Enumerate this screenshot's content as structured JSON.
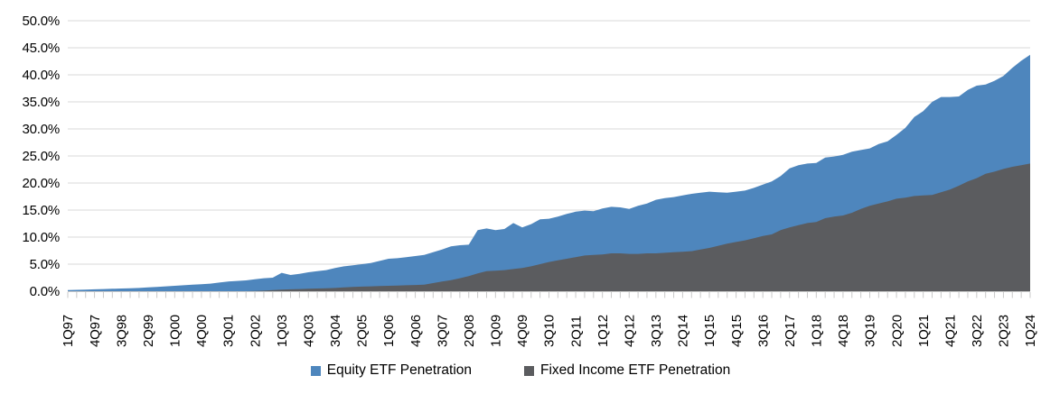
{
  "chart_data": {
    "type": "area",
    "title": "",
    "mode": "overlay",
    "grid": "horizontal",
    "legend_position": "bottom-center",
    "ylim": [
      0,
      50
    ],
    "ytick_step": 5,
    "ytick_suffix": "%",
    "xtick_label_every": 3,
    "colors": {
      "equity": "#4E86BD",
      "fixed_income": "#5B5C5F",
      "gridline": "#D9D9D9",
      "tick": "#C9C9C9",
      "text": "#000000",
      "background": "#FFFFFF"
    },
    "categories": [
      "1Q97",
      "2Q97",
      "3Q97",
      "4Q97",
      "1Q98",
      "2Q98",
      "3Q98",
      "4Q98",
      "1Q99",
      "2Q99",
      "3Q99",
      "4Q99",
      "1Q00",
      "2Q00",
      "3Q00",
      "4Q00",
      "1Q01",
      "2Q01",
      "3Q01",
      "4Q01",
      "1Q02",
      "2Q02",
      "3Q02",
      "4Q02",
      "1Q03",
      "2Q03",
      "3Q03",
      "4Q03",
      "1Q04",
      "2Q04",
      "3Q04",
      "4Q04",
      "1Q05",
      "2Q05",
      "3Q05",
      "4Q05",
      "1Q06",
      "2Q06",
      "3Q06",
      "4Q06",
      "1Q07",
      "2Q07",
      "3Q07",
      "4Q07",
      "1Q08",
      "2Q08",
      "3Q08",
      "4Q08",
      "1Q09",
      "2Q09",
      "3Q09",
      "4Q09",
      "1Q10",
      "2Q10",
      "3Q10",
      "4Q10",
      "1Q11",
      "2Q11",
      "3Q11",
      "4Q11",
      "1Q12",
      "2Q12",
      "3Q12",
      "4Q12",
      "1Q13",
      "2Q13",
      "3Q13",
      "4Q13",
      "1Q14",
      "2Q14",
      "3Q14",
      "4Q14",
      "1Q15",
      "2Q15",
      "3Q15",
      "4Q15",
      "1Q16",
      "2Q16",
      "3Q16",
      "4Q16",
      "1Q17",
      "2Q17",
      "3Q17",
      "4Q17",
      "1Q18",
      "2Q18",
      "3Q18",
      "4Q18",
      "1Q19",
      "2Q19",
      "3Q19",
      "4Q19",
      "1Q20",
      "2Q20",
      "3Q20",
      "4Q20",
      "1Q21",
      "2Q21",
      "3Q21",
      "4Q21",
      "1Q22",
      "2Q22",
      "3Q22",
      "4Q22",
      "1Q23",
      "2Q23",
      "3Q23",
      "4Q23",
      "1Q24"
    ],
    "series": [
      {
        "name": "Equity ETF Penetration",
        "color": "#4E86BD",
        "values": [
          0.2,
          0.25,
          0.3,
          0.35,
          0.4,
          0.45,
          0.5,
          0.55,
          0.6,
          0.7,
          0.8,
          0.9,
          1.0,
          1.1,
          1.2,
          1.3,
          1.4,
          1.6,
          1.8,
          1.9,
          2.0,
          2.2,
          2.4,
          2.5,
          3.4,
          3.0,
          3.2,
          3.5,
          3.7,
          3.9,
          4.3,
          4.6,
          4.8,
          5.0,
          5.2,
          5.6,
          6.0,
          6.1,
          6.3,
          6.5,
          6.7,
          7.2,
          7.7,
          8.3,
          8.5,
          8.6,
          11.3,
          11.6,
          11.3,
          11.5,
          12.6,
          11.8,
          12.4,
          13.3,
          13.4,
          13.8,
          14.3,
          14.7,
          14.9,
          14.8,
          15.3,
          15.6,
          15.5,
          15.2,
          15.8,
          16.2,
          16.9,
          17.2,
          17.4,
          17.7,
          18.0,
          18.2,
          18.4,
          18.3,
          18.2,
          18.4,
          18.6,
          19.1,
          19.7,
          20.3,
          21.3,
          22.7,
          23.3,
          23.6,
          23.7,
          24.7,
          24.9,
          25.2,
          25.8,
          26.1,
          26.4,
          27.2,
          27.7,
          28.9,
          30.2,
          32.2,
          33.3,
          35.0,
          35.9,
          35.9,
          36.0,
          37.2,
          38.0,
          38.2,
          38.9,
          39.8,
          41.3,
          42.6,
          43.7
        ]
      },
      {
        "name": "Fixed Income ETF Penetration",
        "color": "#5B5C5F",
        "values": [
          0,
          0,
          0,
          0,
          0,
          0,
          0,
          0,
          0,
          0,
          0,
          0,
          0,
          0,
          0,
          0,
          0,
          0,
          0,
          0,
          0.0,
          0.05,
          0.1,
          0.2,
          0.3,
          0.35,
          0.4,
          0.45,
          0.5,
          0.55,
          0.6,
          0.7,
          0.8,
          0.85,
          0.9,
          0.95,
          1.0,
          1.05,
          1.1,
          1.15,
          1.2,
          1.5,
          1.8,
          2.05,
          2.4,
          2.8,
          3.3,
          3.7,
          3.8,
          3.9,
          4.1,
          4.3,
          4.6,
          5.0,
          5.4,
          5.7,
          6.0,
          6.3,
          6.6,
          6.7,
          6.8,
          7.0,
          7.0,
          6.9,
          6.9,
          7.0,
          7.0,
          7.1,
          7.2,
          7.3,
          7.4,
          7.7,
          8.0,
          8.4,
          8.8,
          9.1,
          9.4,
          9.8,
          10.2,
          10.5,
          11.3,
          11.8,
          12.2,
          12.6,
          12.8,
          13.5,
          13.8,
          14.0,
          14.5,
          15.2,
          15.8,
          16.2,
          16.6,
          17.1,
          17.3,
          17.6,
          17.7,
          17.8,
          18.3,
          18.8,
          19.5,
          20.3,
          20.9,
          21.7,
          22.1,
          22.6,
          23.0,
          23.3,
          23.6
        ]
      }
    ],
    "y_axis_labels": [
      "50.0%",
      "45.0%",
      "40.0%",
      "35.0%",
      "30.0%",
      "25.0%",
      "20.0%",
      "15.0%",
      "10.0%",
      "5.0%",
      "0.0%"
    ],
    "x_axis_shown_labels": [
      "1Q97",
      "4Q97",
      "3Q98",
      "2Q99",
      "1Q00",
      "4Q00",
      "3Q01",
      "2Q02",
      "1Q03",
      "4Q03",
      "3Q04",
      "2Q05",
      "1Q06",
      "4Q06",
      "3Q07",
      "2Q08",
      "1Q09",
      "4Q09",
      "3Q10",
      "2Q11",
      "1Q12",
      "4Q12",
      "3Q13",
      "2Q14",
      "1Q15",
      "4Q15",
      "3Q16",
      "2Q17",
      "1Q18",
      "4Q18",
      "3Q19",
      "2Q20",
      "1Q21",
      "4Q21",
      "3Q22",
      "2Q23",
      "1Q24"
    ]
  },
  "legend": {
    "items": [
      {
        "label": "Equity ETF Penetration"
      },
      {
        "label": "Fixed Income ETF Penetration"
      }
    ]
  }
}
